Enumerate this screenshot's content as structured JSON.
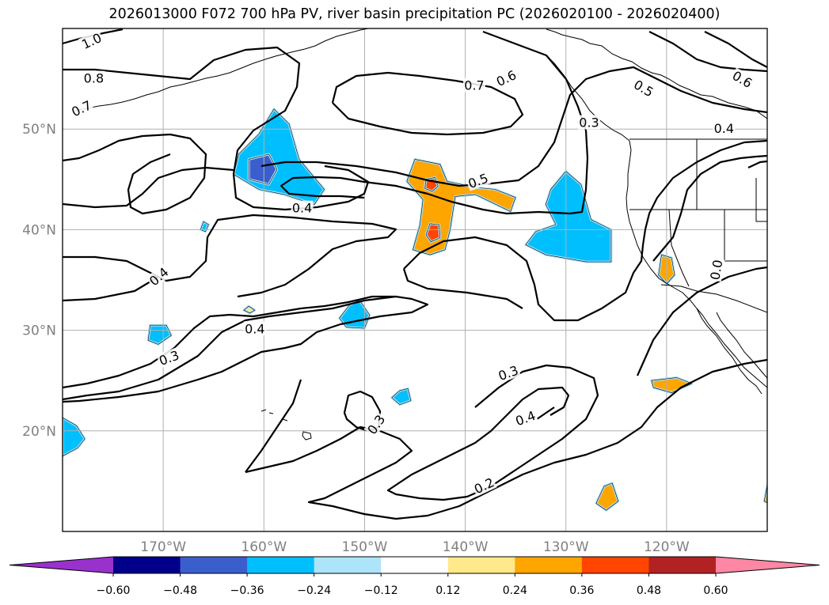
{
  "title": "2026013000 F072 700 hPa PV, river basin precipitation PC (2026020100 - 2026020400)",
  "map": {
    "projection": "plate-carree",
    "lon_range": [
      -180,
      -110
    ],
    "lat_range": [
      10,
      60
    ],
    "gridlines": true,
    "lon_ticks": [
      {
        "lon": -170,
        "label": "170°W"
      },
      {
        "lon": -160,
        "label": "160°W"
      },
      {
        "lon": -150,
        "label": "150°W"
      },
      {
        "lon": -140,
        "label": "140°W"
      },
      {
        "lon": -130,
        "label": "130°W"
      },
      {
        "lon": -120,
        "label": "120°W"
      }
    ],
    "lat_ticks": [
      {
        "lat": 20,
        "label": "20°N"
      },
      {
        "lat": 30,
        "label": "30°N"
      },
      {
        "lat": 40,
        "label": "40°N"
      },
      {
        "lat": 50,
        "label": "50°N"
      }
    ],
    "contour_labels": [
      {
        "text": "1.0",
        "lon": -177.1,
        "lat": 58.7,
        "rot": -25
      },
      {
        "text": "0.8",
        "lon": -176.9,
        "lat": 55.0,
        "rot": 0
      },
      {
        "text": "0.7",
        "lon": -178.1,
        "lat": 52.0,
        "rot": -25
      },
      {
        "text": "0.7",
        "lon": -139.1,
        "lat": 54.3,
        "rot": 0
      },
      {
        "text": "0.6",
        "lon": -135.9,
        "lat": 55.0,
        "rot": -25
      },
      {
        "text": "0.5",
        "lon": -122.3,
        "lat": 54.0,
        "rot": 30
      },
      {
        "text": "0.6",
        "lon": -112.5,
        "lat": 54.9,
        "rot": 30
      },
      {
        "text": "0.3",
        "lon": -127.7,
        "lat": 50.6,
        "rot": 0
      },
      {
        "text": "0.4",
        "lon": -114.3,
        "lat": 50.0,
        "rot": 0
      },
      {
        "text": "0.5",
        "lon": -138.7,
        "lat": 44.8,
        "rot": -20
      },
      {
        "text": "0.4",
        "lon": -156.2,
        "lat": 42.1,
        "rot": 0
      },
      {
        "text": "0.0",
        "lon": -115.0,
        "lat": 36.0,
        "rot": -80
      },
      {
        "text": "0.4",
        "lon": -170.4,
        "lat": 35.3,
        "rot": -40
      },
      {
        "text": "0.4",
        "lon": -160.9,
        "lat": 30.1,
        "rot": 0
      },
      {
        "text": "0.3",
        "lon": -169.4,
        "lat": 27.2,
        "rot": -20
      },
      {
        "text": "0.3",
        "lon": -135.7,
        "lat": 25.7,
        "rot": -20
      },
      {
        "text": "0.4",
        "lon": -134.0,
        "lat": 21.2,
        "rot": -20
      },
      {
        "text": "0.3",
        "lon": -148.8,
        "lat": 20.6,
        "rot": -55
      },
      {
        "text": "0.2",
        "lon": -138.1,
        "lat": 14.5,
        "rot": -25
      }
    ],
    "anomaly_patches": [
      {
        "level": -0.24,
        "color": "#00bfff",
        "points": [
          [
            -160.5,
            49.5
          ],
          [
            -159,
            52
          ],
          [
            -157.5,
            50.5
          ],
          [
            -156.5,
            47
          ],
          [
            -154,
            44
          ],
          [
            -155,
            42.5
          ],
          [
            -158,
            43.5
          ],
          [
            -160.5,
            44
          ],
          [
            -163,
            45.5
          ],
          [
            -162.5,
            47.5
          ]
        ]
      },
      {
        "level": -0.36,
        "color": "#3a5fcd",
        "points": [
          [
            -161.5,
            47
          ],
          [
            -159.5,
            47.5
          ],
          [
            -158.7,
            46
          ],
          [
            -159.5,
            44.5
          ],
          [
            -161.5,
            45
          ]
        ]
      },
      {
        "level": -0.24,
        "color": "#00bfff",
        "points": [
          [
            -131.5,
            44
          ],
          [
            -130,
            45.8
          ],
          [
            -128.5,
            44.5
          ],
          [
            -127.5,
            41
          ],
          [
            -125.5,
            40
          ],
          [
            -125.5,
            36.8
          ],
          [
            -128,
            36.8
          ],
          [
            -132,
            37.5
          ],
          [
            -134,
            38.5
          ],
          [
            -133,
            39.8
          ],
          [
            -131,
            40.5
          ],
          [
            -132,
            42.5
          ]
        ]
      },
      {
        "level": -0.24,
        "color": "#00bfff",
        "points": [
          [
            -151.5,
            32.5
          ],
          [
            -150.5,
            33
          ],
          [
            -149.5,
            31.5
          ],
          [
            -150,
            30.2
          ],
          [
            -151.8,
            30.3
          ],
          [
            -152.5,
            31.2
          ]
        ]
      },
      {
        "level": -0.24,
        "color": "#00bfff",
        "points": [
          [
            -171.3,
            30.5
          ],
          [
            -169.7,
            30.5
          ],
          [
            -169.2,
            29.5
          ],
          [
            -170.5,
            28.6
          ],
          [
            -171.5,
            29
          ]
        ]
      },
      {
        "level": -0.24,
        "color": "#00bfff",
        "points": [
          [
            -180,
            21.3
          ],
          [
            -178.6,
            20.5
          ],
          [
            -177.8,
            19.2
          ],
          [
            -178.5,
            18.3
          ],
          [
            -180,
            17.5
          ]
        ]
      },
      {
        "level": -0.24,
        "color": "#00bfff",
        "points": [
          [
            -146.5,
            24
          ],
          [
            -145.7,
            24.2
          ],
          [
            -145.4,
            23
          ],
          [
            -146.5,
            22.6
          ],
          [
            -147.3,
            23.3
          ]
        ]
      },
      {
        "level": -0.24,
        "color": "#00bfff",
        "points": [
          [
            -166,
            40.8
          ],
          [
            -165.5,
            40.5
          ],
          [
            -165.8,
            39.8
          ],
          [
            -166.3,
            40
          ]
        ]
      },
      {
        "level": 0.24,
        "color": "#ffa500",
        "points": [
          [
            -145,
            47
          ],
          [
            -142.5,
            46.5
          ],
          [
            -141.8,
            44.8
          ],
          [
            -139,
            44.2
          ],
          [
            -137,
            44
          ],
          [
            -135,
            43.2
          ],
          [
            -135.5,
            41.8
          ],
          [
            -139,
            43.5
          ],
          [
            -141,
            43.3
          ],
          [
            -141.5,
            40
          ],
          [
            -142,
            38
          ],
          [
            -143.5,
            37.5
          ],
          [
            -145.2,
            38
          ],
          [
            -144.5,
            40.5
          ],
          [
            -144.2,
            43
          ],
          [
            -145.8,
            44.8
          ]
        ]
      },
      {
        "level": 0.36,
        "color": "#ff4500",
        "points": [
          [
            -143.9,
            45
          ],
          [
            -143,
            45.2
          ],
          [
            -142.7,
            44.3
          ],
          [
            -143.3,
            43.8
          ],
          [
            -144,
            44.1
          ]
        ]
      },
      {
        "level": 0.36,
        "color": "#ff4500",
        "points": [
          [
            -143.5,
            40.6
          ],
          [
            -142.6,
            40.5
          ],
          [
            -142.5,
            39.2
          ],
          [
            -143.4,
            38.8
          ],
          [
            -143.9,
            39.5
          ]
        ]
      },
      {
        "level": 0.24,
        "color": "#ffa500",
        "points": [
          [
            -120.5,
            37.5
          ],
          [
            -119.5,
            37.2
          ],
          [
            -119.2,
            35.5
          ],
          [
            -120,
            34.6
          ],
          [
            -120.8,
            35.5
          ]
        ]
      },
      {
        "level": 0.24,
        "color": "#ffa500",
        "points": [
          [
            -121.5,
            25
          ],
          [
            -119,
            25.3
          ],
          [
            -117.5,
            24.7
          ],
          [
            -119.5,
            23.8
          ],
          [
            -121.3,
            24.3
          ]
        ]
      },
      {
        "level": 0.24,
        "color": "#ffa500",
        "points": [
          [
            -126.2,
            14.5
          ],
          [
            -125.4,
            14.8
          ],
          [
            -124.8,
            13
          ],
          [
            -126,
            12.1
          ],
          [
            -127,
            12.8
          ]
        ]
      },
      {
        "level": 0.24,
        "color": "#ffa500",
        "points": [
          [
            -110,
            14.6
          ],
          [
            -109.4,
            14.6
          ],
          [
            -109.4,
            12.6
          ],
          [
            -110.3,
            13
          ]
        ]
      },
      {
        "level": 0.12,
        "color": "#ffe98a",
        "points": [
          [
            -161.5,
            32.4
          ],
          [
            -160.9,
            32
          ],
          [
            -161.4,
            31.7
          ],
          [
            -162,
            32
          ]
        ]
      }
    ]
  },
  "colorbar": {
    "levels": [
      -0.6,
      -0.48,
      -0.36,
      -0.24,
      -0.12,
      0.12,
      0.24,
      0.36,
      0.48,
      0.6
    ],
    "labels": [
      "−0.60",
      "−0.48",
      "−0.36",
      "−0.24",
      "−0.12",
      "0.12",
      "0.24",
      "0.36",
      "0.48",
      "0.60"
    ],
    "colors": [
      "#9932cc",
      "#00008b",
      "#3a5fcd",
      "#00bfff",
      "#aee4fa",
      "#ffffff",
      "#ffe98a",
      "#ffa500",
      "#ff4500",
      "#b22222",
      "#ff87a6"
    ],
    "extend": "both"
  }
}
